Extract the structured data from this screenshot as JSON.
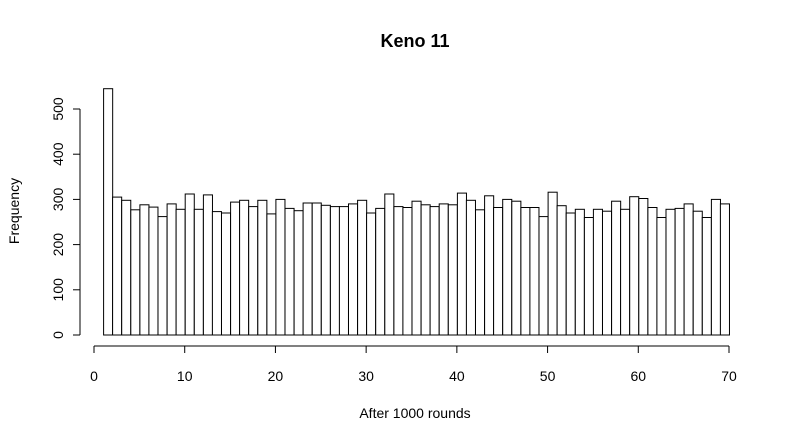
{
  "chart_data": {
    "type": "bar",
    "title": "Keno 11",
    "xlabel": "After 1000 rounds",
    "ylabel": "Frequency",
    "xlim": [
      0,
      70
    ],
    "ylim": [
      0,
      500
    ],
    "x_ticks": [
      0,
      10,
      20,
      30,
      40,
      50,
      60,
      70
    ],
    "y_ticks": [
      0,
      100,
      200,
      300,
      400,
      500
    ],
    "bin_width": 1,
    "bins_start": 1,
    "values": [
      545,
      305,
      298,
      277,
      288,
      283,
      262,
      290,
      278,
      312,
      278,
      310,
      273,
      270,
      294,
      298,
      284,
      298,
      268,
      300,
      280,
      275,
      292,
      292,
      287,
      284,
      284,
      290,
      298,
      270,
      280,
      312,
      284,
      282,
      296,
      288,
      284,
      290,
      288,
      314,
      298,
      277,
      308,
      282,
      300,
      296,
      282,
      282,
      262,
      316,
      286,
      270,
      278,
      260,
      278,
      274,
      296,
      278,
      306,
      302,
      282,
      260,
      278,
      280,
      290,
      274,
      260,
      300,
      290
    ],
    "grid": false,
    "legend": "none"
  }
}
